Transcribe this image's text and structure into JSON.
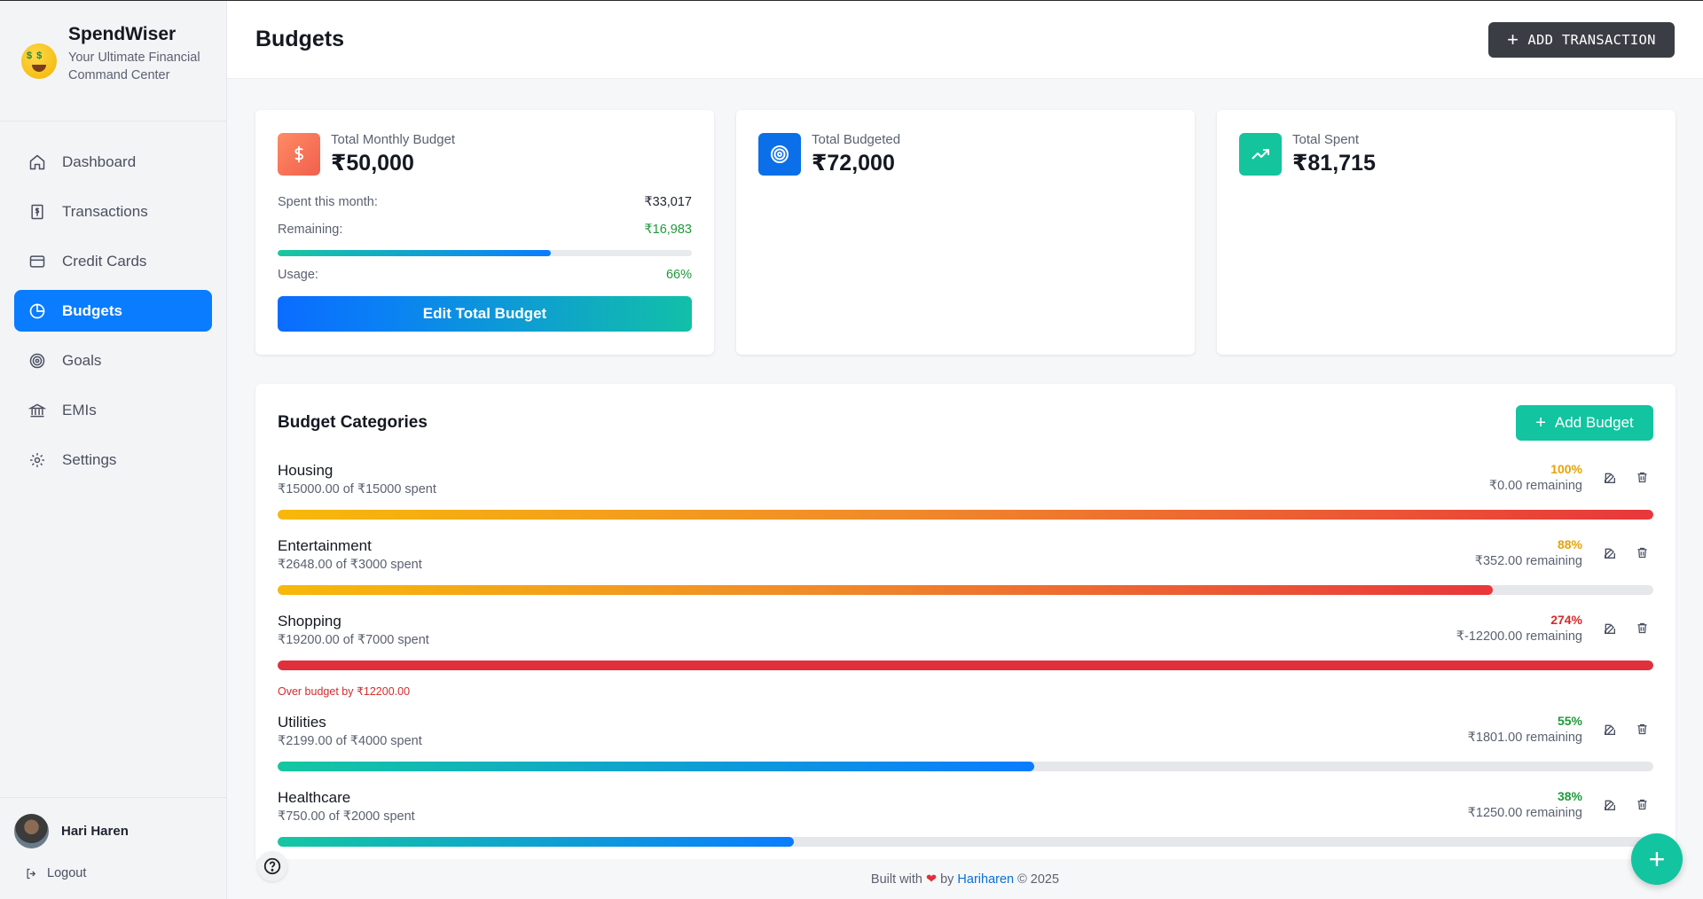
{
  "brand": {
    "name": "SpendWiser",
    "tagline": "Your Ultimate Financial Command Center"
  },
  "nav": [
    {
      "label": "Dashboard",
      "icon": "home-icon"
    },
    {
      "label": "Transactions",
      "icon": "receipt-dollar-icon"
    },
    {
      "label": "Credit Cards",
      "icon": "credit-card-icon"
    },
    {
      "label": "Budgets",
      "icon": "pie-chart-icon",
      "active": true
    },
    {
      "label": "Goals",
      "icon": "target-icon"
    },
    {
      "label": "EMIs",
      "icon": "bank-icon"
    },
    {
      "label": "Settings",
      "icon": "gear-icon"
    }
  ],
  "user": {
    "name": "Hari Haren",
    "logout": "Logout"
  },
  "header": {
    "title": "Budgets",
    "add_transaction": "ADD TRANSACTION"
  },
  "summary": {
    "monthly": {
      "label": "Total Monthly Budget",
      "value": "₹50,000",
      "spent_label": "Spent this month:",
      "spent_value": "₹33,017",
      "remaining_label": "Remaining:",
      "remaining_value": "₹16,983",
      "usage_label": "Usage:",
      "usage_value": "66%",
      "usage_fraction": 0.66,
      "edit_label": "Edit Total Budget"
    },
    "budgeted": {
      "label": "Total Budgeted",
      "value": "₹72,000"
    },
    "spent": {
      "label": "Total Spent",
      "value": "₹81,715"
    }
  },
  "categories": {
    "title": "Budget Categories",
    "add_label": "Add Budget",
    "items": [
      {
        "name": "Housing",
        "spent": "₹15000.00 of ₹15000 spent",
        "pct": "100%",
        "remaining": "₹0.00 remaining",
        "fraction": 1.0,
        "pct_color": "#e8a20a",
        "bar": "warm"
      },
      {
        "name": "Entertainment",
        "spent": "₹2648.00 of ₹3000 spent",
        "pct": "88%",
        "remaining": "₹352.00 remaining",
        "fraction": 0.883,
        "pct_color": "#e8a20a",
        "bar": "warm"
      },
      {
        "name": "Shopping",
        "spent": "₹19200.00 of ₹7000 spent",
        "pct": "274%",
        "remaining": "₹-12200.00 remaining",
        "fraction": 1.0,
        "pct_color": "#d52c2c",
        "bar": "red",
        "warning": "Over budget by ₹12200.00"
      },
      {
        "name": "Utilities",
        "spent": "₹2199.00 of ₹4000 spent",
        "pct": "55%",
        "remaining": "₹1801.00 remaining",
        "fraction": 0.55,
        "pct_color": "#1f9a3a",
        "bar": "cool"
      },
      {
        "name": "Healthcare",
        "spent": "₹750.00 of ₹2000 spent",
        "pct": "38%",
        "remaining": "₹1250.00 remaining",
        "fraction": 0.375,
        "pct_color": "#1f9a3a",
        "bar": "cool"
      }
    ]
  },
  "footer": {
    "prefix": "Built with",
    "by": "by",
    "author": "Hariharen",
    "suffix": "© 2025"
  },
  "colors": {
    "accent": "#0a7cff",
    "teal": "#12c4a0",
    "danger": "#d52c2c",
    "success": "#1f9a3a"
  }
}
